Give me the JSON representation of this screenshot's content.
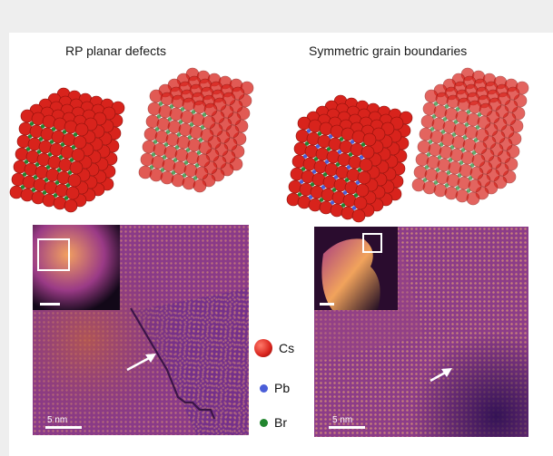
{
  "figure": {
    "panels": [
      {
        "title": "RP planar defects",
        "scale_bar_label": "5 nm"
      },
      {
        "title": "Symmetric grain boundaries",
        "scale_bar_label": "5 nm"
      }
    ],
    "legend": [
      {
        "label": "Cs",
        "color": "#d8231c"
      },
      {
        "label": "Pb",
        "color": "#4a5ed8"
      },
      {
        "label": "Br",
        "color": "#22862f"
      }
    ],
    "colors": {
      "cs_atom": "#d8231c",
      "pb_atom": "#4a5ed8",
      "br_atom": "#22862f",
      "image_base": "#7a2f8a",
      "image_highlight": "#f0a060"
    },
    "icons": [
      "arrow-icon",
      "inset-box-icon"
    ]
  }
}
